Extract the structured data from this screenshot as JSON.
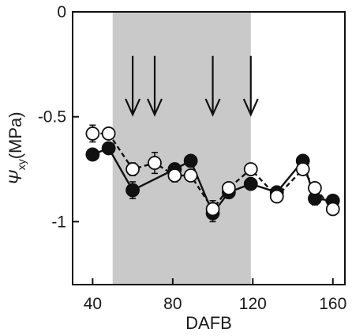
{
  "chart_data": {
    "type": "line",
    "xlabel": "DAFB",
    "ylabel_symbol": "Ψ",
    "ylabel_subscript": "xy",
    "ylabel_unit": "(MPa)",
    "xlim": [
      30,
      166
    ],
    "ylim": [
      -1.3,
      0
    ],
    "x_ticks": [
      40,
      80,
      120,
      160
    ],
    "y_ticks": [
      0,
      -0.5,
      -1
    ],
    "y_tick_labels": [
      "0",
      "-0.5",
      "-1"
    ],
    "grid": false,
    "shaded_region": {
      "x_start": 50,
      "x_end": 119,
      "color": "#c9c9c9"
    },
    "arrows_at_x": [
      60,
      71,
      100,
      119
    ],
    "arrow_y_range": [
      -0.21,
      -0.49
    ],
    "series": [
      {
        "style": "solid",
        "marker_fill": "#111111",
        "line_color": "#111111",
        "points": [
          {
            "x": 40,
            "y": -0.68,
            "err": 0.02
          },
          {
            "x": 48,
            "y": -0.65,
            "err": 0.02
          },
          {
            "x": 60,
            "y": -0.85,
            "err": 0.04
          },
          {
            "x": 81,
            "y": -0.75,
            "err": 0.02
          },
          {
            "x": 89,
            "y": -0.71,
            "err": 0.02
          },
          {
            "x": 100,
            "y": -0.96,
            "err": 0.04
          },
          {
            "x": 108,
            "y": -0.86,
            "err": 0.02
          },
          {
            "x": 119,
            "y": -0.82,
            "err": 0.02
          },
          {
            "x": 132,
            "y": -0.86,
            "err": 0.02
          },
          {
            "x": 145,
            "y": -0.71,
            "err": 0.02
          },
          {
            "x": 151,
            "y": -0.89,
            "err": 0.03
          },
          {
            "x": 160,
            "y": -0.9,
            "err": 0.02
          }
        ]
      },
      {
        "style": "dashed",
        "marker_fill": "#ffffff",
        "line_color": "#111111",
        "points": [
          {
            "x": 40,
            "y": -0.58,
            "err": 0.04
          },
          {
            "x": 48,
            "y": -0.58,
            "err": 0.02
          },
          {
            "x": 60,
            "y": -0.75,
            "err": 0.03
          },
          {
            "x": 71,
            "y": -0.72,
            "err": 0.05
          },
          {
            "x": 81,
            "y": -0.78,
            "err": 0.03
          },
          {
            "x": 89,
            "y": -0.78,
            "err": 0.02
          },
          {
            "x": 100,
            "y": -0.94,
            "err": 0.04
          },
          {
            "x": 108,
            "y": -0.84,
            "err": 0.02
          },
          {
            "x": 119,
            "y": -0.75,
            "err": 0.02
          },
          {
            "x": 132,
            "y": -0.88,
            "err": 0.02
          },
          {
            "x": 145,
            "y": -0.75,
            "err": 0.02
          },
          {
            "x": 151,
            "y": -0.84,
            "err": 0.02
          },
          {
            "x": 160,
            "y": -0.94,
            "err": 0.02
          }
        ]
      }
    ]
  }
}
